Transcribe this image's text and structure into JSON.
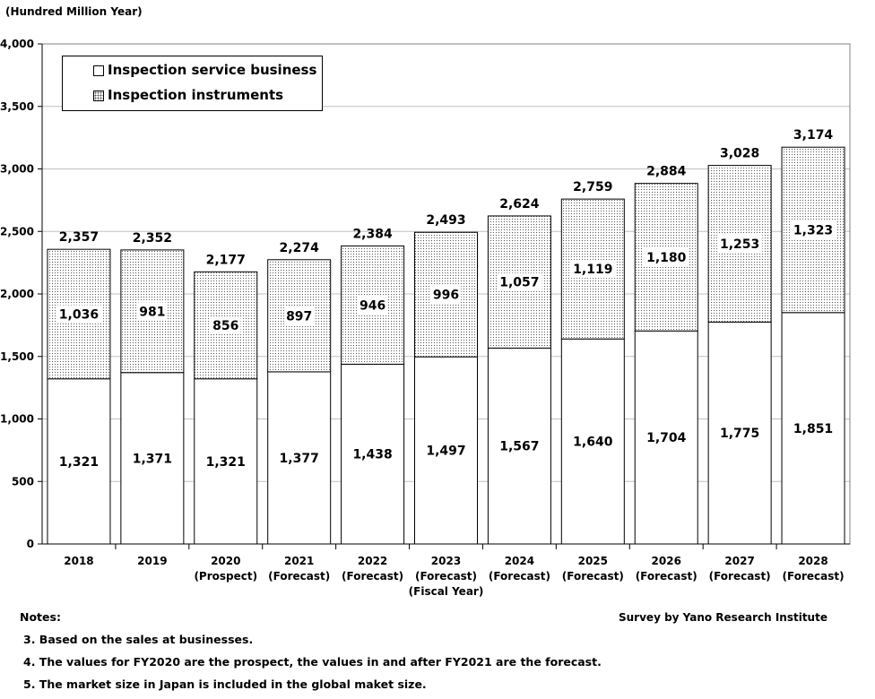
{
  "chart_data": {
    "type": "bar",
    "stacked": true,
    "unit_label": "(Hundred Million Year)",
    "categories": [
      {
        "year": "2018",
        "note": ""
      },
      {
        "year": "2019",
        "note": ""
      },
      {
        "year": "2020",
        "note": "(Prospect)"
      },
      {
        "year": "2021",
        "note": "(Forecast)"
      },
      {
        "year": "2022",
        "note": "(Forecast)"
      },
      {
        "year": "2023",
        "note": "(Forecast)"
      },
      {
        "year": "2024",
        "note": "(Forecast)"
      },
      {
        "year": "2025",
        "note": "(Forecast)"
      },
      {
        "year": "2026",
        "note": "(Forecast)"
      },
      {
        "year": "2027",
        "note": "(Forecast)"
      },
      {
        "year": "2028",
        "note": "(Forecast)"
      }
    ],
    "series": [
      {
        "name": "Inspection service business",
        "pattern": "white",
        "values": [
          1321,
          1371,
          1321,
          1377,
          1438,
          1497,
          1567,
          1640,
          1704,
          1775,
          1851
        ],
        "labels": [
          "1,321",
          "1,371",
          "1,321",
          "1,377",
          "1,438",
          "1,497",
          "1,567",
          "1,640",
          "1,704",
          "1,775",
          "1,851"
        ]
      },
      {
        "name": "Inspection instruments",
        "pattern": "dotted",
        "values": [
          1036,
          981,
          856,
          897,
          946,
          996,
          1057,
          1119,
          1180,
          1253,
          1323
        ],
        "labels": [
          "1,036",
          "981",
          "856",
          "897",
          "946",
          "996",
          "1,057",
          "1,119",
          "1,180",
          "1,253",
          "1,323"
        ]
      }
    ],
    "totals": [
      2357,
      2352,
      2177,
      2274,
      2384,
      2493,
      2624,
      2759,
      2884,
      3028,
      3174
    ],
    "total_labels": [
      "2,357",
      "2,352",
      "2,177",
      "2,274",
      "2,384",
      "2,493",
      "2,624",
      "2,759",
      "2,884",
      "3,028",
      "3,174"
    ],
    "ylim": [
      0,
      4000
    ],
    "yticks": [
      0,
      500,
      1000,
      1500,
      2000,
      2500,
      3000,
      3500,
      4000
    ],
    "ytick_labels": [
      "0",
      "500",
      "1,000",
      "1,500",
      "2,000",
      "2,500",
      "3,000",
      "3,500",
      "4,000"
    ],
    "xlabel": "(Fiscal Year)",
    "grid": true,
    "legend_position": "top-left"
  },
  "notes": {
    "heading": "Notes:",
    "items": [
      "3. Based on the sales at businesses.",
      "4. The values for FY2020 are the prospect, the values in and after FY2021 are the forecast.",
      "5. The market size in Japan is included in the global maket size."
    ]
  },
  "source": "Survey by Yano Research Institute",
  "colors": {
    "bar_border": "#000000",
    "grid": "#c0c0c0",
    "dots": "#555555"
  }
}
